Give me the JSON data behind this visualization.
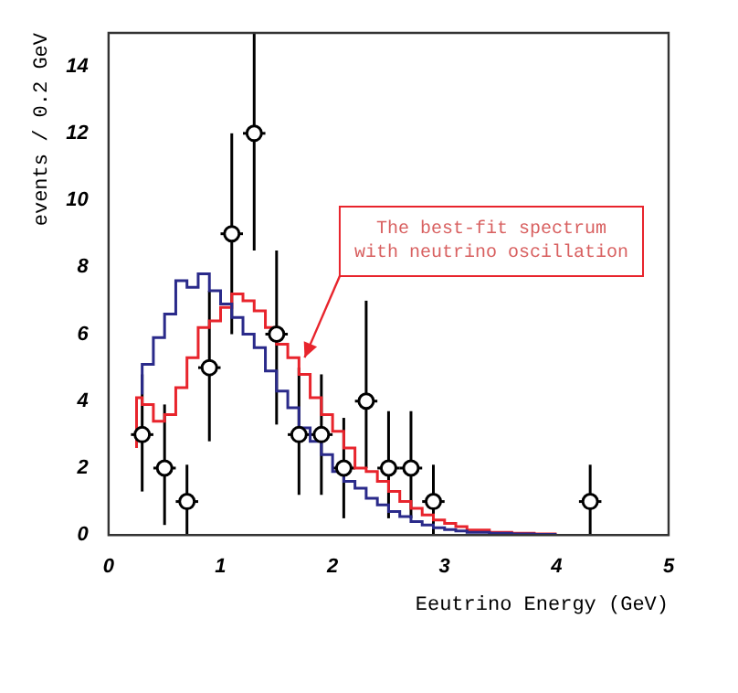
{
  "chart_data": {
    "type": "scatter",
    "xlabel": "Eeutrino Energy (GeV)",
    "ylabel": "events / 0.2 GeV",
    "xlim": [
      0,
      5
    ],
    "xticks": [
      0,
      1,
      2,
      3,
      4,
      5
    ],
    "ylim": [
      0,
      15
    ],
    "yticks": [
      0,
      2,
      4,
      6,
      8,
      10,
      12,
      14
    ],
    "grid": false,
    "legend": false,
    "annotations": [
      {
        "text": "The best-fit spectrum\nwith neutrino oscillation",
        "x": 1.75,
        "y": 5.3
      }
    ],
    "series": [
      {
        "type": "step",
        "color": "#2a2a8a",
        "x": [
          0.3,
          0.4,
          0.5,
          0.6,
          0.7,
          0.8,
          0.9,
          1.0,
          1.1,
          1.2,
          1.3,
          1.4,
          1.5,
          1.6,
          1.7,
          1.8,
          1.9,
          2.0,
          2.1,
          2.2,
          2.3,
          2.4,
          2.5,
          2.6,
          2.7,
          2.8,
          2.9,
          3.0,
          3.1,
          3.2,
          3.4,
          3.6,
          3.8,
          4.0
        ],
        "values": [
          4.2,
          5.1,
          5.9,
          6.6,
          7.6,
          7.4,
          7.8,
          7.3,
          6.9,
          6.5,
          6.0,
          5.6,
          4.9,
          4.3,
          3.8,
          3.2,
          2.8,
          2.4,
          1.9,
          1.6,
          1.4,
          1.1,
          0.9,
          0.7,
          0.55,
          0.4,
          0.3,
          0.22,
          0.16,
          0.12,
          0.08,
          0.05,
          0.03,
          0.02
        ]
      },
      {
        "type": "step",
        "color": "#e8242c",
        "x": [
          0.25,
          0.3,
          0.4,
          0.5,
          0.6,
          0.7,
          0.8,
          0.9,
          1.0,
          1.1,
          1.2,
          1.3,
          1.4,
          1.5,
          1.6,
          1.7,
          1.8,
          1.9,
          2.0,
          2.1,
          2.2,
          2.3,
          2.4,
          2.5,
          2.6,
          2.7,
          2.8,
          2.9,
          3.0,
          3.1,
          3.2,
          3.4,
          3.6,
          3.8,
          4.0
        ],
        "values": [
          2.6,
          4.1,
          3.9,
          3.4,
          3.6,
          4.4,
          5.3,
          6.2,
          6.4,
          6.8,
          7.2,
          7.0,
          6.7,
          6.2,
          5.7,
          5.3,
          4.8,
          4.1,
          3.6,
          3.1,
          2.6,
          2.0,
          1.9,
          1.6,
          1.3,
          1.0,
          0.8,
          0.6,
          0.45,
          0.35,
          0.25,
          0.15,
          0.08,
          0.05,
          0.03
        ]
      },
      {
        "color": "#000000",
        "marker": "circle",
        "x": [
          0.3,
          0.5,
          0.7,
          0.9,
          1.1,
          1.3,
          1.5,
          1.7,
          1.9,
          2.1,
          2.3,
          2.5,
          2.7,
          2.9,
          4.3
        ],
        "values": [
          3,
          2,
          1,
          5,
          9,
          12,
          6,
          3,
          3,
          2,
          4,
          2,
          2,
          1,
          1
        ],
        "errors": [
          [
            1.3,
            4.8
          ],
          [
            0.3,
            3.9
          ],
          [
            0,
            2.1
          ],
          [
            2.8,
            7.3
          ],
          [
            6,
            12
          ],
          [
            8.5,
            15
          ],
          [
            3.3,
            8.5
          ],
          [
            1.2,
            5
          ],
          [
            1.2,
            4.8
          ],
          [
            0.5,
            3.5
          ],
          [
            2,
            7
          ],
          [
            0.5,
            3.7
          ],
          [
            0.5,
            3.7
          ],
          [
            0,
            2.1
          ],
          [
            0,
            2.1
          ]
        ],
        "xerrors": [
          0.1,
          0.1,
          0.1,
          0.1,
          0.1,
          0.1,
          0.1,
          0.1,
          0.1,
          0.1,
          0.1,
          0.1,
          0.1,
          0.1,
          0.1
        ]
      }
    ]
  }
}
